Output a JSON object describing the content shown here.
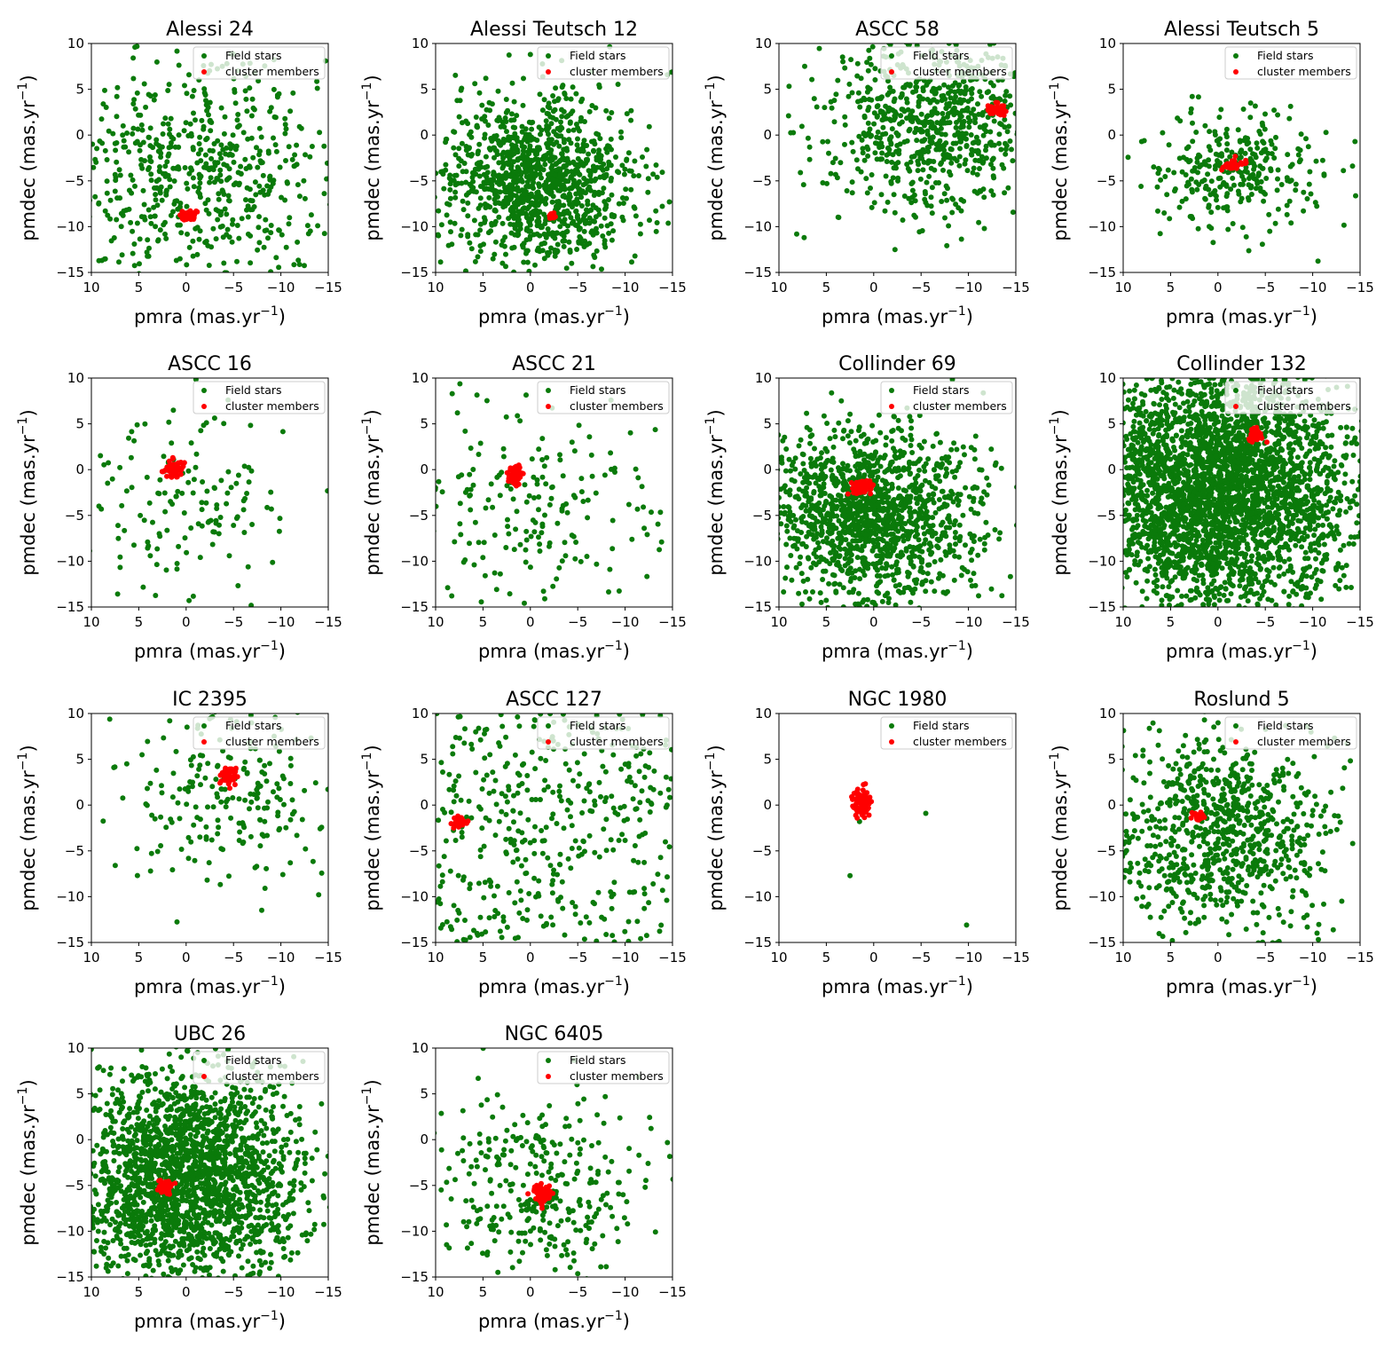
{
  "figure": {
    "x_unit_label": "pmra (mas.yr",
    "y_unit_label": "pmdec (mas.yr",
    "unit_exponent": "−1",
    "unit_close": ")",
    "legend": [
      "Field stars",
      "cluster members"
    ]
  },
  "colors": {
    "field": "#0a7a0a",
    "member": "#ff0000",
    "axis": "#000000"
  },
  "chart_data": [
    {
      "type": "scatter",
      "title": "Alessi 24",
      "xlabel": "pmra (mas.yr^-1)",
      "ylabel": "pmdec (mas.yr^-1)",
      "xlim": [
        10,
        -15
      ],
      "ylim": [
        -15,
        10
      ],
      "xticks": [
        10,
        5,
        0,
        -5,
        -10,
        -15
      ],
      "yticks": [
        10,
        5,
        0,
        -5,
        -10,
        -15
      ],
      "legend": "upper right",
      "series": [
        {
          "name": "Field stars",
          "center": [
            -1,
            -4
          ],
          "spread": [
            8,
            6
          ],
          "count": 650,
          "shape": "gaussian",
          "clip": true
        },
        {
          "name": "cluster members",
          "center": [
            -0.3,
            -8.8
          ],
          "spread": [
            0.35,
            0.35
          ],
          "count": 40
        }
      ]
    },
    {
      "type": "scatter",
      "title": "Alessi Teutsch 12",
      "xlabel": "pmra (mas.yr^-1)",
      "ylabel": "pmdec (mas.yr^-1)",
      "xlim": [
        10,
        -15
      ],
      "ylim": [
        -15,
        10
      ],
      "xticks": [
        10,
        5,
        0,
        -5,
        -10,
        -15
      ],
      "yticks": [
        10,
        5,
        0,
        -5,
        -10,
        -15
      ],
      "legend": "upper right",
      "series": [
        {
          "name": "Field stars",
          "center": [
            -1,
            -5
          ],
          "spread": [
            5,
            4.5
          ],
          "count": 1200,
          "shape": "gaussian",
          "clip": true
        },
        {
          "name": "cluster members",
          "center": [
            -2.2,
            -8.9
          ],
          "spread": [
            0.2,
            0.2
          ],
          "count": 20
        }
      ]
    },
    {
      "type": "scatter",
      "title": "ASCC 58",
      "xlabel": "pmra (mas.yr^-1)",
      "ylabel": "pmdec (mas.yr^-1)",
      "xlim": [
        10,
        -15
      ],
      "ylim": [
        -15,
        10
      ],
      "xticks": [
        10,
        5,
        0,
        -5,
        -10,
        -15
      ],
      "yticks": [
        10,
        5,
        0,
        -5,
        -10,
        -15
      ],
      "legend": "upper right",
      "series": [
        {
          "name": "Field stars",
          "center": [
            -6,
            1
          ],
          "spread": [
            6,
            5
          ],
          "count": 800,
          "shape": "gaussian",
          "clip": true
        },
        {
          "name": "cluster members",
          "center": [
            -13,
            2.8
          ],
          "spread": [
            0.5,
            0.35
          ],
          "count": 40
        }
      ]
    },
    {
      "type": "scatter",
      "title": "Alessi Teutsch 5",
      "xlabel": "pmra (mas.yr^-1)",
      "ylabel": "pmdec (mas.yr^-1)",
      "xlim": [
        10,
        -15
      ],
      "ylim": [
        -15,
        10
      ],
      "xticks": [
        10,
        5,
        0,
        -5,
        -10,
        -15
      ],
      "yticks": [
        10,
        5,
        0,
        -5,
        -10,
        -15
      ],
      "legend": "upper right",
      "series": [
        {
          "name": "Field stars",
          "center": [
            -1.5,
            -3.5
          ],
          "spread": [
            4.5,
            3.2
          ],
          "count": 300,
          "shape": "gaussian",
          "clip": true
        },
        {
          "name": "cluster members",
          "center": [
            -1.8,
            -3.2
          ],
          "spread": [
            0.6,
            0.3
          ],
          "count": 40
        }
      ]
    },
    {
      "type": "scatter",
      "title": "ASCC 16",
      "xlabel": "pmra (mas.yr^-1)",
      "ylabel": "pmdec (mas.yr^-1)",
      "xlim": [
        10,
        -15
      ],
      "ylim": [
        -15,
        10
      ],
      "xticks": [
        10,
        5,
        0,
        -5,
        -10,
        -15
      ],
      "yticks": [
        10,
        5,
        0,
        -5,
        -10,
        -15
      ],
      "legend": "upper right",
      "series": [
        {
          "name": "Field stars",
          "center": [
            0,
            -4
          ],
          "spread": [
            6,
            5
          ],
          "count": 150,
          "shape": "gaussian",
          "clip": true
        },
        {
          "name": "cluster members",
          "center": [
            1.3,
            0
          ],
          "spread": [
            0.5,
            0.5
          ],
          "count": 60
        }
      ]
    },
    {
      "type": "scatter",
      "title": "ASCC 21",
      "xlabel": "pmra (mas.yr^-1)",
      "ylabel": "pmdec (mas.yr^-1)",
      "xlim": [
        10,
        -15
      ],
      "ylim": [
        -15,
        10
      ],
      "xticks": [
        10,
        5,
        0,
        -5,
        -10,
        -15
      ],
      "yticks": [
        10,
        5,
        0,
        -5,
        -10,
        -15
      ],
      "legend": "upper right",
      "series": [
        {
          "name": "Field stars",
          "center": [
            0,
            -4
          ],
          "spread": [
            7,
            6
          ],
          "count": 220,
          "shape": "gaussian",
          "clip": true
        },
        {
          "name": "cluster members",
          "center": [
            1.5,
            -0.5
          ],
          "spread": [
            0.5,
            0.5
          ],
          "count": 60
        }
      ]
    },
    {
      "type": "scatter",
      "title": "Collinder 69",
      "xlabel": "pmra (mas.yr^-1)",
      "ylabel": "pmdec (mas.yr^-1)",
      "xlim": [
        10,
        -15
      ],
      "ylim": [
        -15,
        10
      ],
      "xticks": [
        10,
        5,
        0,
        -5,
        -10,
        -15
      ],
      "yticks": [
        10,
        5,
        0,
        -5,
        -10,
        -15
      ],
      "legend": "upper right",
      "series": [
        {
          "name": "Field stars",
          "center": [
            0,
            -5
          ],
          "spread": [
            6,
            5
          ],
          "count": 1400,
          "shape": "gaussian",
          "clip": true
        },
        {
          "name": "cluster members",
          "center": [
            1.3,
            -2
          ],
          "spread": [
            0.6,
            0.4
          ],
          "count": 70
        }
      ]
    },
    {
      "type": "scatter",
      "title": "Collinder 132",
      "xlabel": "pmra (mas.yr^-1)",
      "ylabel": "pmdec (mas.yr^-1)",
      "xlim": [
        10,
        -15
      ],
      "ylim": [
        -15,
        10
      ],
      "xticks": [
        10,
        5,
        0,
        -5,
        -10,
        -15
      ],
      "yticks": [
        10,
        5,
        0,
        -5,
        -10,
        -15
      ],
      "legend": "upper right",
      "series": [
        {
          "name": "Field stars",
          "center": [
            0,
            -2
          ],
          "spread": [
            7,
            7
          ],
          "count": 3500,
          "shape": "gaussian",
          "clip": true
        },
        {
          "name": "cluster members",
          "center": [
            -4,
            3.7
          ],
          "spread": [
            0.4,
            0.4
          ],
          "count": 40
        }
      ]
    },
    {
      "type": "scatter",
      "title": "IC 2395",
      "xlabel": "pmra (mas.yr^-1)",
      "ylabel": "pmdec (mas.yr^-1)",
      "xlim": [
        10,
        -15
      ],
      "ylim": [
        -15,
        10
      ],
      "xticks": [
        10,
        5,
        0,
        -5,
        -10,
        -15
      ],
      "yticks": [
        10,
        5,
        0,
        -5,
        -10,
        -15
      ],
      "legend": "upper right",
      "series": [
        {
          "name": "Field stars",
          "center": [
            -4,
            1
          ],
          "spread": [
            6,
            5
          ],
          "count": 230,
          "shape": "gaussian",
          "clip": true
        },
        {
          "name": "cluster members",
          "center": [
            -4.5,
            3.2
          ],
          "spread": [
            0.4,
            0.6
          ],
          "count": 50
        }
      ]
    },
    {
      "type": "scatter",
      "title": "ASCC 127",
      "xlabel": "pmra (mas.yr^-1)",
      "ylabel": "pmdec (mas.yr^-1)",
      "xlim": [
        10,
        -15
      ],
      "ylim": [
        -15,
        10
      ],
      "xticks": [
        10,
        5,
        0,
        -5,
        -10,
        -15
      ],
      "yticks": [
        10,
        5,
        0,
        -5,
        -10,
        -15
      ],
      "legend": "upper right",
      "series": [
        {
          "name": "Field stars",
          "center": [
            -2.5,
            -4
          ],
          "spread": [
            12,
            10
          ],
          "count": 420,
          "shape": "uniform",
          "clip": true
        },
        {
          "name": "cluster members",
          "center": [
            7.5,
            -1.8
          ],
          "spread": [
            0.4,
            0.35
          ],
          "count": 40
        }
      ]
    },
    {
      "type": "scatter",
      "title": "NGC 1980",
      "xlabel": "pmra (mas.yr^-1)",
      "ylabel": "pmdec (mas.yr^-1)",
      "xlim": [
        10,
        -15
      ],
      "ylim": [
        -15,
        10
      ],
      "xticks": [
        10,
        5,
        0,
        -5,
        -10,
        -15
      ],
      "yticks": [
        10,
        5,
        0,
        -5,
        -10,
        -15
      ],
      "legend": "upper right",
      "series": [
        {
          "name": "Field stars",
          "points": [
            [
              1.5,
              -1.8
            ],
            [
              -5.5,
              -0.9
            ],
            [
              2.5,
              -7.7
            ],
            [
              -9.8,
              -13.1
            ],
            [
              0.8,
              -0.3
            ],
            [
              1.4,
              0.8
            ]
          ]
        },
        {
          "name": "cluster members",
          "center": [
            1.2,
            0.2
          ],
          "spread": [
            0.55,
            0.8
          ],
          "count": 70
        }
      ]
    },
    {
      "type": "scatter",
      "title": "Roslund 5",
      "xlabel": "pmra (mas.yr^-1)",
      "ylabel": "pmdec (mas.yr^-1)",
      "xlim": [
        10,
        -15
      ],
      "ylim": [
        -15,
        10
      ],
      "xticks": [
        10,
        5,
        0,
        -5,
        -10,
        -15
      ],
      "yticks": [
        10,
        5,
        0,
        -5,
        -10,
        -15
      ],
      "legend": "upper right",
      "series": [
        {
          "name": "Field stars",
          "center": [
            0,
            -3
          ],
          "spread": [
            6,
            5.5
          ],
          "count": 850,
          "shape": "gaussian",
          "clip": true
        },
        {
          "name": "cluster members",
          "center": [
            2.1,
            -1.2
          ],
          "spread": [
            0.3,
            0.3
          ],
          "count": 25
        }
      ]
    },
    {
      "type": "scatter",
      "title": "UBC 26",
      "xlabel": "pmra (mas.yr^-1)",
      "ylabel": "pmdec (mas.yr^-1)",
      "xlim": [
        10,
        -15
      ],
      "ylim": [
        -15,
        10
      ],
      "xticks": [
        10,
        5,
        0,
        -5,
        -10,
        -15
      ],
      "yticks": [
        10,
        5,
        0,
        -5,
        -10,
        -15
      ],
      "legend": "upper right",
      "series": [
        {
          "name": "Field stars",
          "center": [
            0,
            -4
          ],
          "spread": [
            6,
            6
          ],
          "count": 2200,
          "shape": "gaussian",
          "clip": true
        },
        {
          "name": "cluster members",
          "center": [
            2.2,
            -5.2
          ],
          "spread": [
            0.4,
            0.35
          ],
          "count": 40
        }
      ]
    },
    {
      "type": "scatter",
      "title": "NGC 6405",
      "xlabel": "pmra (mas.yr^-1)",
      "ylabel": "pmdec (mas.yr^-1)",
      "xlim": [
        10,
        -15
      ],
      "ylim": [
        -15,
        10
      ],
      "xticks": [
        10,
        5,
        0,
        -5,
        -10,
        -15
      ],
      "yticks": [
        10,
        5,
        0,
        -5,
        -10,
        -15
      ],
      "legend": "upper right",
      "series": [
        {
          "name": "Field stars",
          "center": [
            -1,
            -5
          ],
          "spread": [
            5.5,
            5
          ],
          "count": 330,
          "shape": "gaussian",
          "clip": true
        },
        {
          "name": "cluster members",
          "center": [
            -1.3,
            -5.9
          ],
          "spread": [
            0.6,
            0.5
          ],
          "count": 70
        }
      ]
    }
  ]
}
